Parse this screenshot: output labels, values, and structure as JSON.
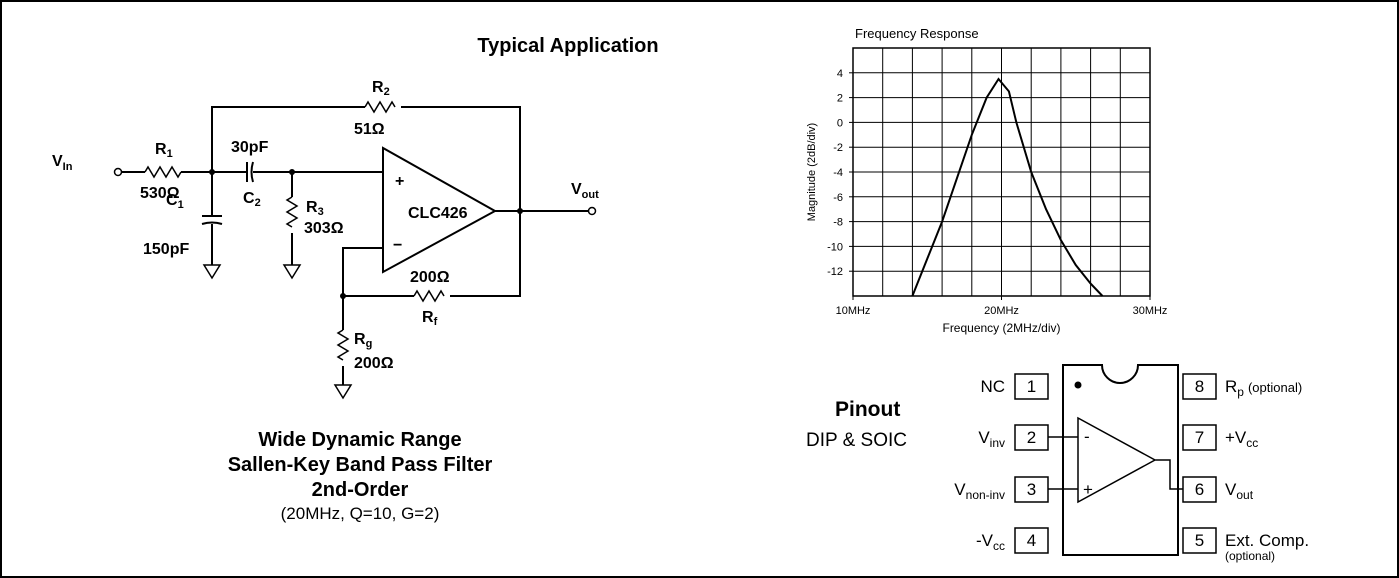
{
  "schematic": {
    "title": "Typical Application",
    "vin": {
      "text": "V",
      "sub": "In"
    },
    "vout": {
      "text": "V",
      "sub": "out"
    },
    "r1": {
      "text": "R",
      "sub": "1"
    },
    "r1_value": "530Ω",
    "r2": {
      "text": "R",
      "sub": "2"
    },
    "r2_value": "51Ω",
    "c1": {
      "text": "C",
      "sub": "1"
    },
    "c1_value": "150pF",
    "c2": {
      "text": "C",
      "sub": "2"
    },
    "c2_value": "30pF",
    "r3": {
      "text": "R",
      "sub": "3"
    },
    "r3_value": "303Ω",
    "rf": {
      "text": "R",
      "sub": "f"
    },
    "rf_value": "200Ω",
    "rg": {
      "text": "R",
      "sub": "g"
    },
    "rg_value": "200Ω",
    "opamp": "CLC426",
    "plus": "+",
    "minus": "−"
  },
  "caption": [
    "Wide Dynamic Range",
    "Sallen-Key Band Pass Filter",
    "2nd-Order",
    "(20MHz, Q=10, G=2)"
  ],
  "chart_data": {
    "type": "line",
    "title": "Frequency Response",
    "x_label": "Frequency (2MHz/div)",
    "y_label": "Magnitude (2dB/div)",
    "x": [
      14,
      15,
      16,
      17,
      18,
      19,
      19.8,
      20.5,
      21,
      22,
      23,
      24,
      25,
      26,
      26.8
    ],
    "series": [
      {
        "color": "#000000",
        "values": [
          -14,
          -11,
          -8,
          -4.5,
          -1,
          2,
          3.5,
          2.5,
          0,
          -4,
          -7,
          -9.5,
          -11.5,
          -13,
          -14
        ]
      }
    ],
    "xlim": [
      10,
      30
    ],
    "xticks": [
      {
        "value": 10,
        "label": "10MHz"
      },
      {
        "value": 20,
        "label": "20MHz"
      },
      {
        "value": 30,
        "label": "30MHz"
      }
    ],
    "ylim": [
      -14,
      6
    ],
    "yticks": [
      4,
      2,
      0,
      -2,
      -4,
      -6,
      -8,
      -10,
      -12
    ],
    "xgrid": [
      12,
      14,
      16,
      18,
      20,
      22,
      24,
      26,
      28
    ],
    "ygrid": [
      -12,
      -10,
      -8,
      -6,
      -4,
      -2,
      0,
      2,
      4
    ],
    "grid": true
  },
  "pinout": {
    "title": "Pinout",
    "package": "DIP & SOIC",
    "left": [
      {
        "number": 1,
        "text": "NC",
        "sub": ""
      },
      {
        "number": 2,
        "text": "V",
        "sub": "inv"
      },
      {
        "number": 3,
        "text": "V",
        "sub": "non-inv"
      },
      {
        "number": 4,
        "text": "-V",
        "sub": "cc"
      }
    ],
    "right": [
      {
        "number": 8,
        "text": "R",
        "sub": "p",
        "note": "(optional)"
      },
      {
        "number": 7,
        "text": "+V",
        "sub": "cc"
      },
      {
        "number": 6,
        "text": "V",
        "sub": "out"
      },
      {
        "number": 5,
        "text": "Ext. Comp.",
        "note": "(optional)"
      }
    ],
    "minus": "-",
    "plus": "+"
  }
}
